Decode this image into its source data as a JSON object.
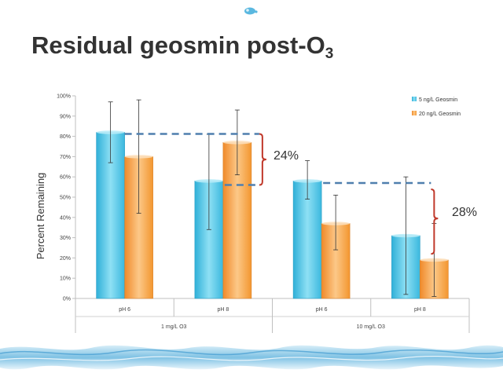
{
  "slide": {
    "title_main": "Residual geosmin post-O",
    "title_sub": "3"
  },
  "annotations": {
    "first_diff": "24%",
    "second_diff": "28%"
  },
  "colors": {
    "series_blue": "#4cc4e4",
    "series_orange": "#f6a24e",
    "dashed_line": "#4f7fae",
    "bracket": "#c0392b"
  },
  "chart_data": {
    "type": "bar",
    "ylabel": "Percent Remaining",
    "ylim": [
      0,
      100
    ],
    "yticks": [
      "0%",
      "10%",
      "20%",
      "30%",
      "40%",
      "50%",
      "60%",
      "70%",
      "80%",
      "90%",
      "100%"
    ],
    "categories": [
      "pH 6",
      "pH 8",
      "pH 6",
      "pH 8"
    ],
    "groups": [
      {
        "label": "1 mg/L O3",
        "span": [
          0,
          1
        ]
      },
      {
        "label": "10 mg/L O3",
        "span": [
          2,
          3
        ]
      }
    ],
    "legend_position": "top-right",
    "series": [
      {
        "name": "5 ng/L Geosmin",
        "values": [
          82,
          58,
          58,
          31
        ],
        "err_low": [
          67,
          34,
          49,
          2
        ],
        "err_high": [
          97,
          81,
          68,
          60
        ]
      },
      {
        "name": "20 ng/L Geosmin",
        "values": [
          70,
          77,
          37,
          19
        ],
        "err_low": [
          42,
          61,
          24,
          1
        ],
        "err_high": [
          98,
          93,
          51,
          37
        ]
      }
    ]
  }
}
